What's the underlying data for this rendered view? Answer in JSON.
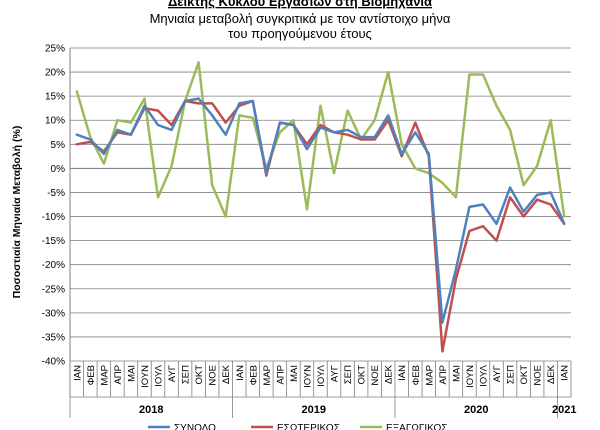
{
  "chart_data": {
    "type": "line",
    "title": "Δείκτης Κύκλου Εργασιών στη Βιομηχανία",
    "subtitle_lines": [
      "Μηνιαία μεταβολή συγκριτικά με τον αντίστοιχο μήνα",
      "του προηγούμενου έτους"
    ],
    "ylabel": "Ποσοστιαία Μηνιαία Μεταβολή (%)",
    "ylim": [
      -40,
      25
    ],
    "yticks": [
      25,
      20,
      15,
      10,
      5,
      0,
      -5,
      -10,
      -15,
      -20,
      -25,
      -30,
      -35,
      -40
    ],
    "ytick_labels": [
      "25%",
      "20%",
      "15%",
      "10%",
      "5%",
      "0%",
      "-5%",
      "-10%",
      "-15%",
      "-20%",
      "-25%",
      "-30%",
      "-35%",
      "-40%"
    ],
    "grid": true,
    "legend_position": "bottom",
    "x": [
      "ΙΑΝ",
      "ΦΕΒ",
      "ΜΑΡ",
      "ΑΠΡ",
      "ΜΑΙ",
      "ΙΟΥΝ",
      "ΙΟΥΛ",
      "ΑΥΓ",
      "ΣΕΠ",
      "ΟΚΤ",
      "ΝΟΕ",
      "ΔΕΚ",
      "ΙΑΝ",
      "ΦΕΒ",
      "ΜΑΡ",
      "ΑΠΡ",
      "ΜΑΙ",
      "ΙΟΥΝ",
      "ΙΟΥΛ",
      "ΑΥΓ",
      "ΣΕΠ",
      "ΟΚΤ",
      "ΝΟΕ",
      "ΔΕΚ",
      "ΙΑΝ",
      "ΦΕΒ",
      "ΜΑΡ",
      "ΑΠΡ",
      "ΜΑΙ",
      "ΙΟΥΝ",
      "ΙΟΥΛ",
      "ΑΥΓ",
      "ΣΕΠ",
      "ΟΚΤ",
      "ΝΟΕ",
      "ΔΕΚ",
      "ΙΑΝ"
    ],
    "year_groups": [
      {
        "label": "2018",
        "start": 0,
        "end": 11
      },
      {
        "label": "2019",
        "start": 12,
        "end": 23
      },
      {
        "label": "2020",
        "start": 24,
        "end": 35
      },
      {
        "label": "2021",
        "start": 36,
        "end": 36
      }
    ],
    "series": [
      {
        "name": "ΣΥΝΟΛΟ",
        "color": "#4f81bd",
        "values": [
          7,
          6,
          3,
          8,
          7,
          13,
          9,
          8,
          14,
          14.5,
          11,
          7,
          13.5,
          14,
          -1,
          9.5,
          9,
          4,
          8.5,
          7.5,
          8,
          6.5,
          6.5,
          11,
          3,
          7.5,
          3,
          -32,
          -21,
          -8,
          -7.5,
          -11.5,
          -4,
          -9,
          -5.5,
          -5,
          -11.5
        ]
      },
      {
        "name": "ΕΣΩΤΕΡΙΚΟΣ",
        "color": "#c0504d",
        "values": [
          5,
          5.5,
          3.5,
          7.5,
          7,
          12.5,
          12,
          9,
          14,
          13.5,
          13.5,
          9.5,
          13,
          14,
          -1.5,
          9.5,
          9,
          5,
          9,
          7.5,
          7,
          6,
          6,
          10,
          2.5,
          9.5,
          2.5,
          -38,
          -23,
          -13,
          -12,
          -15,
          -6,
          -10,
          -6.5,
          -7.5,
          -11.5
        ]
      },
      {
        "name": "ΕΞΑΓΩΓΙΚΟΣ",
        "color": "#9bbb59",
        "values": [
          16,
          6.5,
          1,
          10,
          9.5,
          14.5,
          -6,
          0.5,
          14,
          22,
          -3.5,
          -10,
          11,
          10.5,
          0,
          7.5,
          10,
          -8.5,
          13,
          -1,
          12,
          6,
          10,
          20,
          5,
          0,
          -1,
          -3,
          -6,
          19.5,
          19.5,
          13,
          8,
          -3.5,
          0.5,
          10,
          -10
        ]
      }
    ]
  }
}
